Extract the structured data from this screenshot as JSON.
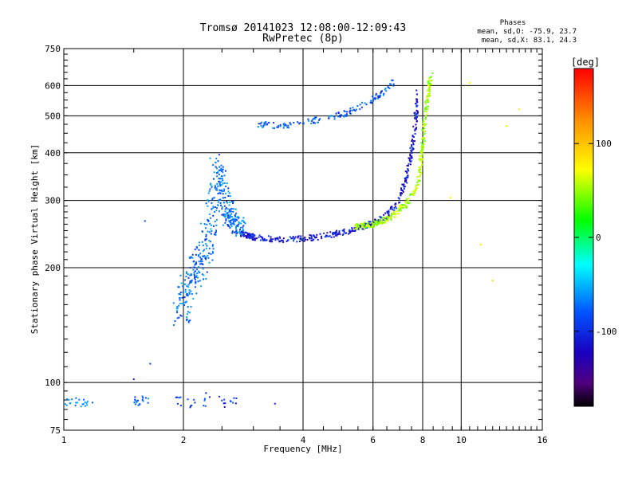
{
  "chart_data": {
    "type": "scatter",
    "title": "Tromsø 20141023 12:08:00-12:09:43",
    "subtitle": "RwPretec (8p)",
    "xlabel": "Frequency [MHz]",
    "ylabel": "Stationary phase Virtual Height [km]",
    "x_scale": "log",
    "y_scale": "log",
    "xlim": [
      1,
      16
    ],
    "ylim": [
      75,
      750
    ],
    "x_ticks": [
      1,
      2,
      4,
      6,
      8,
      10,
      16
    ],
    "y_ticks": [
      75,
      100,
      200,
      300,
      400,
      500,
      600,
      750
    ],
    "grid": true,
    "phase_info": {
      "title": "Phases",
      "line_o": "mean, sd,O: -75.9, 23.7",
      "line_x": "mean, sd,X:  83.1, 24.3"
    },
    "colorbar": {
      "label": "[deg]",
      "range": [
        -180,
        180
      ],
      "ticks": [
        100,
        0,
        -100
      ]
    },
    "traces": [
      {
        "x": [
          1.0,
          1.05,
          1.1,
          1.15
        ],
        "y_range": [
          86,
          92
        ],
        "phase": -60
      },
      {
        "x": [
          1.5,
          1.55,
          1.6
        ],
        "y_range": [
          86,
          92
        ],
        "phase": -75
      },
      {
        "x": [
          1.95,
          2.1,
          2.3,
          2.5,
          2.65
        ],
        "y_range": [
          86,
          94
        ],
        "phase": -95
      },
      {
        "x": [
          3.4
        ],
        "y": [
          88
        ],
        "phase": -130
      },
      {
        "x": [
          1.5,
          1.6,
          1.65
        ],
        "y": [
          102,
          265,
          112
        ],
        "phase": -80
      },
      {
        "x": [
          1.97,
          2.05,
          2.15,
          2.25,
          2.35,
          2.45
        ],
        "y": [
          150,
          175,
          195,
          210,
          260,
          340
        ],
        "phase": -70
      },
      {
        "x": [
          2.4,
          2.5,
          2.6,
          2.7,
          2.8
        ],
        "y": [
          390,
          320,
          275,
          260,
          255
        ],
        "phase": -70
      },
      {
        "x": [
          2.8,
          3.0,
          3.4,
          4.0,
          4.6,
          5.2,
          5.8,
          6.4,
          7.0,
          7.3,
          7.6,
          7.8
        ],
        "y": [
          245,
          240,
          237,
          238,
          243,
          250,
          258,
          270,
          300,
          350,
          430,
          580
        ],
        "phase": -110
      },
      {
        "x": [
          5.4,
          6.0,
          6.6,
          7.2,
          7.8,
          8.0,
          8.2,
          8.4
        ],
        "y": [
          255,
          260,
          270,
          290,
          330,
          420,
          540,
          640
        ],
        "phase": 75
      },
      {
        "x": [
          3.1,
          3.5,
          4.0,
          4.6,
          5.2,
          5.8,
          6.3,
          6.8
        ],
        "y": [
          475,
          470,
          480,
          495,
          510,
          540,
          570,
          615
        ],
        "phase": -80
      },
      {
        "x": [
          9.4,
          10.5,
          11.2,
          12.0,
          13.0,
          14.0
        ],
        "y": [
          305,
          610,
          230,
          185,
          470,
          520
        ],
        "phase": 100
      }
    ]
  }
}
